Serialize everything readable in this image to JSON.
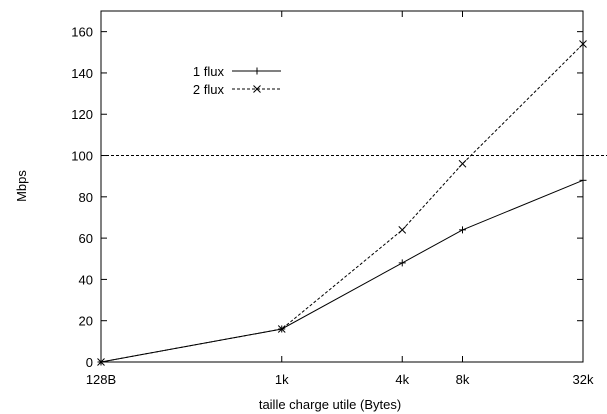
{
  "chart_data": {
    "type": "line",
    "xlabel": "taille charge utile (Bytes)",
    "ylabel": "Mbps",
    "ylim": [
      0,
      170
    ],
    "x_scale": "log2",
    "x": [
      128,
      1024,
      4096,
      8192,
      32768
    ],
    "x_tick_labels": [
      "128B",
      "1k",
      "4k",
      "8k",
      "32k"
    ],
    "y_ticks": [
      0,
      20,
      40,
      60,
      80,
      100,
      120,
      140,
      160
    ],
    "reference_line": 100,
    "legend_position": "top-left",
    "grid": false,
    "series": [
      {
        "name": "1 flux",
        "marker": "+",
        "dash": "solid",
        "values": [
          0,
          16,
          48,
          64,
          88
        ]
      },
      {
        "name": "2 flux",
        "marker": "x",
        "dash": "dashed",
        "values": [
          0,
          16,
          64,
          96,
          154
        ]
      }
    ]
  }
}
